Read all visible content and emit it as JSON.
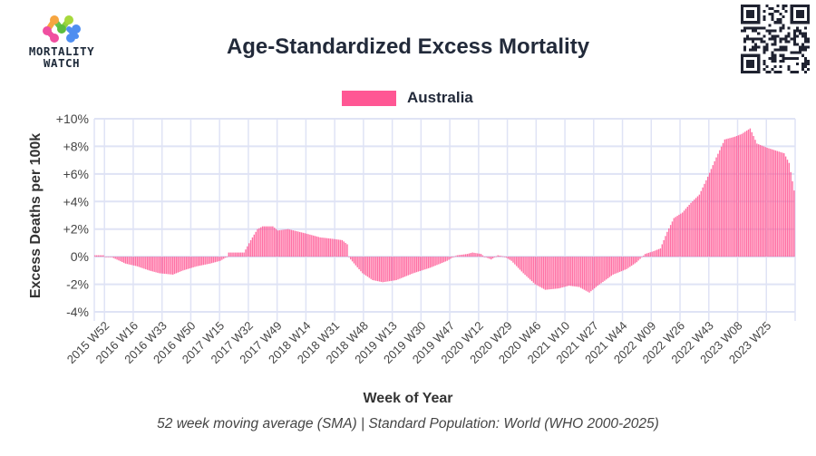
{
  "logo": {
    "line1": "MORTALITY",
    "line2": "WATCH"
  },
  "qr_code": "qr-code",
  "chart_data": {
    "type": "bar",
    "title": "Age-Standardized Excess Mortality",
    "subtitle": "52 week moving average (SMA) | Standard Population: World (WHO 2000-2025)",
    "xlabel": "Week of Year",
    "ylabel": "Excess Deaths per 100k",
    "ylim": [
      -4,
      10
    ],
    "yticks": [
      -4,
      -2,
      0,
      2,
      4,
      6,
      8,
      10
    ],
    "ytick_labels": [
      "-4%",
      "-2%",
      "0%",
      "+2%",
      "+4%",
      "+6%",
      "+8%",
      "+10%"
    ],
    "grid": true,
    "legend": {
      "position": "top-center",
      "entries": [
        {
          "name": "Australia",
          "color": "#ff5794"
        }
      ]
    },
    "series": [
      {
        "name": "Australia",
        "color": "#ff5794",
        "start_week": "2015 W46"
      }
    ],
    "xtick_labels": [
      "2015 W52",
      "2016 W16",
      "2016 W33",
      "2016 W50",
      "2017 W15",
      "2017 W32",
      "2017 W49",
      "2018 W14",
      "2018 W31",
      "2018 W48",
      "2019 W13",
      "2019 W30",
      "2019 W47",
      "2020 W12",
      "2020 W29",
      "2020 W46",
      "2021 W10",
      "2021 W27",
      "2021 W44",
      "2022 W09",
      "2022 W26",
      "2022 W43",
      "2023 W08",
      "2023 W25"
    ],
    "xtick_first_index": 6,
    "xtick_step_weeks": 17,
    "total_weeks": 414,
    "value_anchors": [
      [
        0,
        0.1
      ],
      [
        5,
        0.1
      ],
      [
        6,
        0
      ],
      [
        10,
        0
      ],
      [
        11,
        -0.1
      ],
      [
        18,
        -0.5
      ],
      [
        25,
        -0.7
      ],
      [
        32,
        -1.0
      ],
      [
        38,
        -1.2
      ],
      [
        46,
        -1.3
      ],
      [
        52,
        -1.0
      ],
      [
        60,
        -0.7
      ],
      [
        68,
        -0.5
      ],
      [
        74,
        -0.3
      ],
      [
        78,
        0
      ],
      [
        79,
        0.3
      ],
      [
        88,
        0.3
      ],
      [
        92,
        1.2
      ],
      [
        96,
        2.0
      ],
      [
        99,
        2.2
      ],
      [
        105,
        2.2
      ],
      [
        108,
        1.9
      ],
      [
        114,
        2.0
      ],
      [
        124,
        1.7
      ],
      [
        133,
        1.4
      ],
      [
        140,
        1.3
      ],
      [
        146,
        1.2
      ],
      [
        149,
        0.9
      ],
      [
        150,
        0
      ],
      [
        151,
        -0.2
      ],
      [
        158,
        -1.2
      ],
      [
        164,
        -1.7
      ],
      [
        170,
        -1.85
      ],
      [
        178,
        -1.7
      ],
      [
        188,
        -1.2
      ],
      [
        198,
        -0.8
      ],
      [
        204,
        -0.5
      ],
      [
        208,
        -0.3
      ],
      [
        212,
        0
      ],
      [
        214,
        0.1
      ],
      [
        220,
        0.2
      ],
      [
        223,
        0.3
      ],
      [
        228,
        0.2
      ],
      [
        230,
        0
      ],
      [
        234,
        -0.2
      ],
      [
        238,
        0.1
      ],
      [
        242,
        0
      ],
      [
        246,
        -0.3
      ],
      [
        253,
        -1.2
      ],
      [
        260,
        -2.0
      ],
      [
        266,
        -2.4
      ],
      [
        274,
        -2.3
      ],
      [
        280,
        -2.1
      ],
      [
        286,
        -2.2
      ],
      [
        292,
        -2.6
      ],
      [
        297,
        -2.1
      ],
      [
        306,
        -1.3
      ],
      [
        314,
        -0.9
      ],
      [
        320,
        -0.4
      ],
      [
        325,
        0.2
      ],
      [
        330,
        0.4
      ],
      [
        334,
        0.6
      ],
      [
        338,
        1.8
      ],
      [
        342,
        2.8
      ],
      [
        347,
        3.2
      ],
      [
        352,
        3.9
      ],
      [
        357,
        4.5
      ],
      [
        362,
        5.8
      ],
      [
        367,
        7.2
      ],
      [
        372,
        8.5
      ],
      [
        378,
        8.7
      ],
      [
        382,
        8.9
      ],
      [
        387,
        9.3
      ],
      [
        391,
        8.2
      ],
      [
        397,
        7.9
      ],
      [
        402,
        7.7
      ],
      [
        407,
        7.5
      ],
      [
        410,
        6.8
      ],
      [
        413,
        4.8
      ]
    ]
  }
}
